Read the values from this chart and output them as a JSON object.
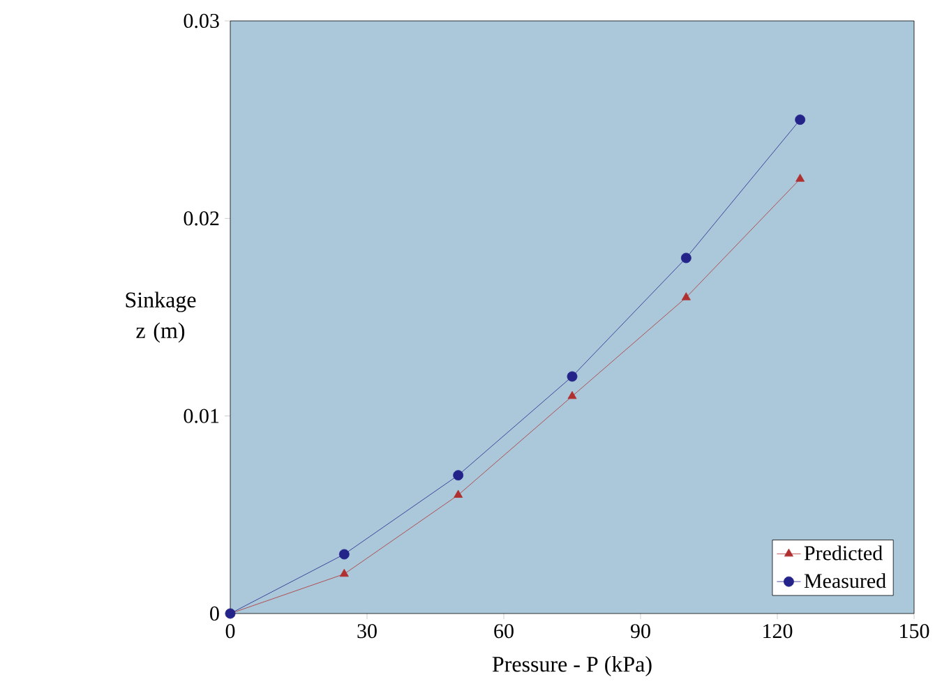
{
  "chart_data": {
    "type": "line",
    "xlabel": "Pressure - P (kPa)",
    "ylabel": "Sinkage z (m)",
    "x": [
      0,
      25,
      50,
      75,
      100,
      125
    ],
    "series": [
      {
        "name": "Predicted",
        "color": "#b03030",
        "marker": "triangle",
        "values": [
          0,
          0.002,
          0.006,
          0.011,
          0.016,
          0.022
        ]
      },
      {
        "name": "Measured",
        "color": "#23238a",
        "marker": "circle",
        "values": [
          0,
          0.003,
          0.007,
          0.012,
          0.018,
          0.025
        ]
      }
    ],
    "xlim": [
      0,
      150
    ],
    "xticks": [
      0,
      30,
      60,
      90,
      120,
      150
    ],
    "ylim": [
      0,
      0.03
    ],
    "yticks": [
      0,
      0.01,
      0.02,
      0.03
    ],
    "grid": false,
    "legend": "bottom right",
    "line_style": "solid"
  }
}
